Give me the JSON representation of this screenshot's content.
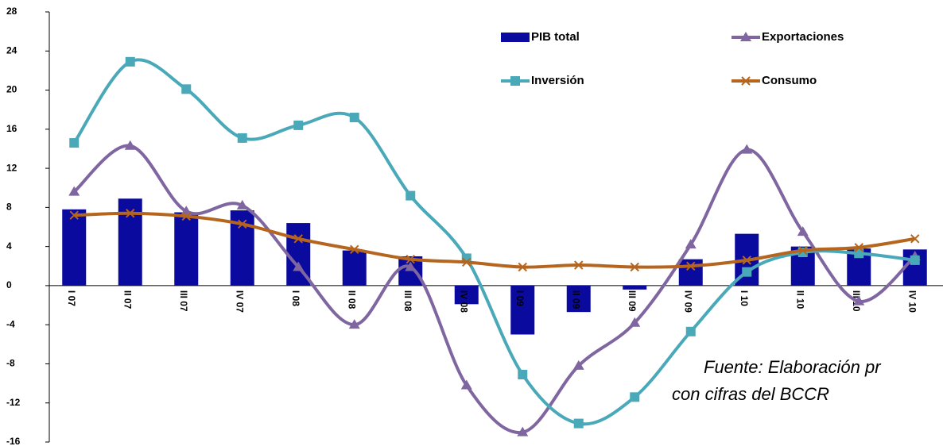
{
  "chart_data": {
    "type": "bar-line",
    "categories": [
      "I 07",
      "II 07",
      "III 07",
      "IV 07",
      "I 08",
      "II 08",
      "III 08",
      "IV 08",
      "I 09",
      "II 09",
      "III 09",
      "IV 09",
      "I 10",
      "II 10",
      "III 10",
      "IV 10"
    ],
    "series": [
      {
        "name": "PIB total",
        "type": "bar",
        "color": "#0a0a9e",
        "values": [
          7.8,
          8.9,
          7.5,
          7.7,
          6.4,
          3.6,
          3.0,
          -1.9,
          -5.0,
          -2.7,
          -0.4,
          2.7,
          5.3,
          4.0,
          3.8,
          3.7
        ]
      },
      {
        "name": "Exportaciones",
        "type": "line",
        "marker": "triangle",
        "color": "#7f66a0",
        "values": [
          9.6,
          14.3,
          7.6,
          8.2,
          1.9,
          -4.0,
          1.9,
          -10.2,
          -15.0,
          -8.2,
          -3.8,
          4.2,
          13.9,
          5.5,
          -1.6,
          3.0
        ]
      },
      {
        "name": "Inversión",
        "type": "line",
        "marker": "square",
        "color": "#4aa9b9",
        "values": [
          14.6,
          22.9,
          20.1,
          15.1,
          16.4,
          17.2,
          9.2,
          2.8,
          -9.1,
          -14.1,
          -11.4,
          -4.7,
          1.4,
          3.4,
          3.3,
          2.6
        ]
      },
      {
        "name": "Consumo",
        "type": "line",
        "marker": "x",
        "color": "#b5651d",
        "values": [
          7.2,
          7.4,
          7.1,
          6.3,
          4.8,
          3.7,
          2.7,
          2.4,
          1.9,
          2.1,
          1.9,
          2.0,
          2.6,
          3.6,
          3.9,
          4.8
        ]
      }
    ],
    "ylim": [
      -16,
      28
    ],
    "yticks": [
      -16,
      -12,
      -8,
      -4,
      0,
      4,
      8,
      12,
      16,
      20,
      24,
      28
    ],
    "annotation": [
      "Fuente: Elaboración pr",
      "con cifras del BCCR"
    ]
  }
}
